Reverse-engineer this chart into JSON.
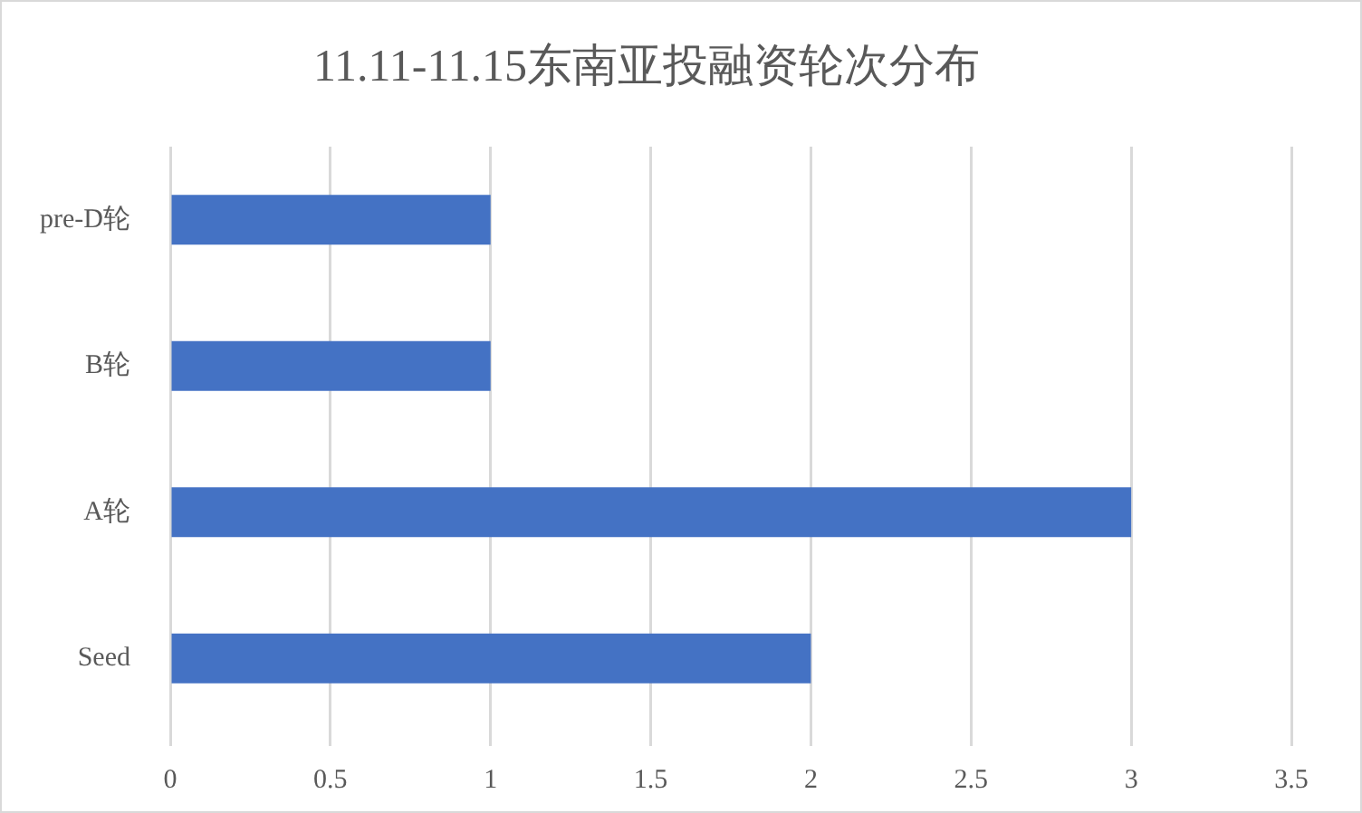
{
  "chart_data": {
    "type": "bar",
    "orientation": "horizontal",
    "title": "11.11-11.15东南亚投融资轮次分布",
    "categories": [
      "pre-D轮",
      "B轮",
      "A轮",
      "Seed"
    ],
    "values": [
      1,
      1,
      3,
      2
    ],
    "color": "#4472c4",
    "xlim": [
      0,
      3.5
    ],
    "xticks": [
      0,
      0.5,
      1,
      1.5,
      2,
      2.5,
      3,
      3.5
    ],
    "grid": "x",
    "legend": false
  }
}
